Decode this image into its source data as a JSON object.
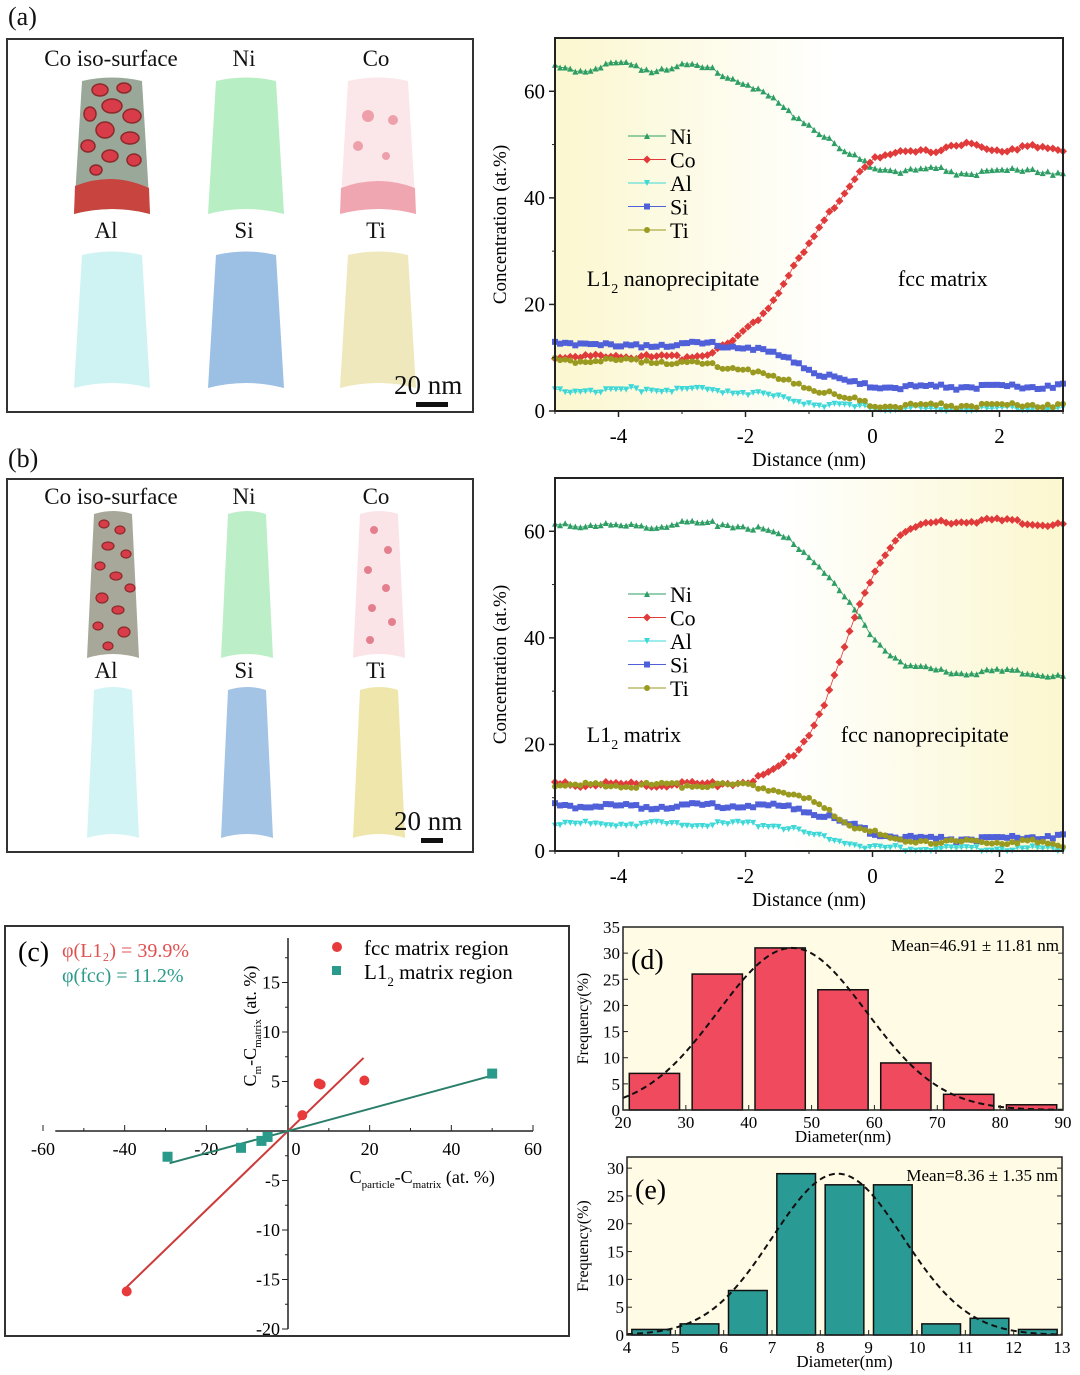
{
  "panels": {
    "a": {
      "tag": "(a)",
      "apt": {
        "labels": [
          "Co iso-surface",
          "Ni",
          "Co",
          "Al",
          "Si",
          "Ti"
        ],
        "scale_label": "20 nm"
      }
    },
    "b": {
      "tag": "(b)",
      "apt": {
        "labels": [
          "Co iso-surface",
          "Ni",
          "Co",
          "Al",
          "Si",
          "Ti"
        ],
        "scale_label": "20 nm"
      }
    },
    "c": {
      "tag": "(c)"
    },
    "d": {
      "tag": "(d)"
    },
    "e": {
      "tag": "(e)"
    }
  },
  "chart_data": [
    {
      "id": "a-profile",
      "type": "line",
      "title": "",
      "xlabel": "Distance (nm)",
      "ylabel": "Concentration (at.%)",
      "xlim": [
        -5,
        3
      ],
      "ylim": [
        0,
        70
      ],
      "xticks": [
        -4,
        -2,
        0,
        2
      ],
      "yticks": [
        0,
        20,
        40,
        60
      ],
      "legend": [
        "Ni",
        "Co",
        "Al",
        "Si",
        "Ti"
      ],
      "legend_position": "upper-left",
      "annotations": [
        {
          "text": "L1",
          "sub": "2",
          "rest": " nanoprecipitate",
          "x": -4.5,
          "y": 25
        },
        {
          "text": "fcc matrix",
          "sub": "",
          "rest": "",
          "x": 0.4,
          "y": 25
        }
      ],
      "background": "left-yellow-gradient",
      "series": [
        {
          "name": "Ni",
          "color": "#2e9e64",
          "marker": "triangle",
          "x": [
            -5,
            -4.5,
            -4,
            -3.5,
            -3,
            -2.5,
            -2,
            -1.75,
            -1.5,
            -1.25,
            -1,
            -0.75,
            -0.5,
            -0.25,
            0,
            0.5,
            1,
            1.5,
            2,
            2.5,
            3
          ],
          "y": [
            64.5,
            64,
            65.5,
            64,
            65,
            64,
            61.5,
            60,
            58,
            55.5,
            54,
            51.5,
            49,
            47.5,
            46,
            45,
            45.5,
            44.5,
            45,
            45.5,
            44.5
          ]
        },
        {
          "name": "Co",
          "color": "#e03a3a",
          "marker": "diamond",
          "x": [
            -5,
            -4.5,
            -4,
            -3.5,
            -3,
            -2.5,
            -2.2,
            -2,
            -1.75,
            -1.5,
            -1.25,
            -1,
            -0.75,
            -0.5,
            -0.25,
            0,
            0.5,
            1,
            1.5,
            2,
            2.5,
            3
          ],
          "y": [
            10,
            10,
            10.5,
            10,
            10,
            11,
            13,
            15,
            18,
            22,
            27,
            31,
            36,
            40,
            44.5,
            47,
            49,
            49,
            50,
            49,
            49.5,
            49
          ]
        },
        {
          "name": "Al",
          "color": "#3fd8d8",
          "marker": "triangle-down",
          "x": [
            -5,
            -4.5,
            -4,
            -3.5,
            -3,
            -2.5,
            -2,
            -1.5,
            -1,
            -0.5,
            0,
            0.5,
            1,
            1.5,
            2,
            2.5,
            3
          ],
          "y": [
            4,
            3.8,
            4,
            4,
            4,
            3.8,
            3.5,
            2.5,
            1.5,
            0.8,
            0.5,
            0.4,
            0.4,
            0.4,
            0.4,
            0.4,
            0.4
          ]
        },
        {
          "name": "Si",
          "color": "#5060d8",
          "marker": "square",
          "x": [
            -5,
            -4.5,
            -4,
            -3.5,
            -3,
            -2.5,
            -2,
            -1.75,
            -1.5,
            -1.25,
            -1,
            -0.75,
            -0.5,
            -0.25,
            0,
            0.5,
            1,
            1.5,
            2,
            2.5,
            3
          ],
          "y": [
            12.5,
            13,
            12,
            12.5,
            12.5,
            12.5,
            12,
            11.5,
            10.5,
            9.5,
            8,
            6.5,
            6,
            5,
            4.8,
            4.5,
            4.5,
            4.5,
            4.6,
            4.5,
            5
          ]
        },
        {
          "name": "Ti",
          "color": "#9a9a20",
          "marker": "circle",
          "x": [
            -5,
            -4.5,
            -4,
            -3.5,
            -3,
            -2.5,
            -2,
            -1.75,
            -1.5,
            -1.25,
            -1,
            -0.75,
            -0.5,
            -0.25,
            0,
            0.5,
            1,
            1.5,
            2,
            2.5,
            3
          ],
          "y": [
            9.5,
            9.5,
            9.5,
            9.5,
            9,
            8.5,
            8,
            7,
            6,
            5.5,
            4.5,
            3.5,
            2.5,
            2,
            1.2,
            1,
            1,
            1,
            1,
            1.2,
            1.2
          ]
        }
      ]
    },
    {
      "id": "b-profile",
      "type": "line",
      "title": "",
      "xlabel": "Distance (nm)",
      "ylabel": "Concentration (at.%)",
      "xlim": [
        -5,
        3
      ],
      "ylim": [
        0,
        70
      ],
      "xticks": [
        -4,
        -2,
        0,
        2
      ],
      "yticks": [
        0,
        20,
        40,
        60
      ],
      "legend": [
        "Ni",
        "Co",
        "Al",
        "Si",
        "Ti"
      ],
      "legend_position": "center-left",
      "annotations": [
        {
          "text": "L1",
          "sub": "2",
          "rest": " matrix",
          "x": -4.5,
          "y": 22
        },
        {
          "text": "fcc nanoprecipitate",
          "sub": "",
          "rest": "",
          "x": -0.5,
          "y": 22
        }
      ],
      "background": "right-yellow-gradient",
      "series": [
        {
          "name": "Ni",
          "color": "#2e9e64",
          "marker": "triangle",
          "x": [
            -5,
            -4.5,
            -4,
            -3.5,
            -3,
            -2.5,
            -2,
            -1.75,
            -1.5,
            -1.25,
            -1,
            -0.75,
            -0.5,
            -0.25,
            0,
            0.25,
            0.5,
            0.75,
            1,
            1.5,
            2,
            2.5,
            3
          ],
          "y": [
            61,
            61.3,
            61,
            61,
            61.5,
            61.5,
            61,
            60.5,
            59.5,
            58,
            55.5,
            52.5,
            48.5,
            44.5,
            40.5,
            37.5,
            35,
            34.5,
            33.8,
            33.5,
            33.8,
            33.5,
            32.5
          ]
        },
        {
          "name": "Co",
          "color": "#e03a3a",
          "marker": "diamond",
          "x": [
            -5,
            -4.5,
            -4,
            -3.5,
            -3,
            -2.5,
            -2,
            -1.75,
            -1.5,
            -1.25,
            -1,
            -0.75,
            -0.5,
            -0.25,
            0,
            0.25,
            0.5,
            0.75,
            1,
            1.5,
            2,
            2.5,
            3
          ],
          "y": [
            12.5,
            12.5,
            12.5,
            12.5,
            12.5,
            12.5,
            13,
            14,
            15.5,
            18,
            22,
            28,
            36,
            44.5,
            52,
            57,
            60,
            61,
            61.5,
            62,
            62,
            61.5,
            61
          ]
        },
        {
          "name": "Al",
          "color": "#3fd8d8",
          "marker": "triangle-down",
          "x": [
            -5,
            -4.5,
            -4,
            -3.5,
            -3,
            -2.5,
            -2,
            -1.5,
            -1.25,
            -1,
            -0.75,
            -0.5,
            -0.25,
            0,
            0.5,
            1,
            1.5,
            2,
            2.5,
            3
          ],
          "y": [
            5,
            5,
            5,
            5,
            5,
            5,
            5,
            4.8,
            4,
            3.2,
            2.5,
            1.8,
            1.2,
            0.6,
            0.4,
            0.4,
            0.4,
            0.4,
            0.4,
            0.3
          ]
        },
        {
          "name": "Si",
          "color": "#5060d8",
          "marker": "square",
          "x": [
            -5,
            -4.5,
            -4,
            -3.5,
            -3,
            -2.5,
            -2,
            -1.5,
            -1.25,
            -1,
            -0.75,
            -0.5,
            -0.25,
            0,
            0.25,
            0.5,
            1,
            1.5,
            2,
            2.5,
            3
          ],
          "y": [
            8.5,
            8.5,
            8.5,
            8.3,
            8.5,
            8.5,
            8.5,
            8.5,
            8.2,
            7.5,
            6.5,
            5.5,
            4.5,
            3.5,
            3,
            2.5,
            2.2,
            2.2,
            2.3,
            2.6,
            3
          ]
        },
        {
          "name": "Ti",
          "color": "#9a9a20",
          "marker": "circle",
          "x": [
            -5,
            -4.5,
            -4,
            -3.5,
            -3,
            -2.5,
            -2,
            -1.75,
            -1.5,
            -1.25,
            -1,
            -0.75,
            -0.5,
            -0.25,
            0,
            0.25,
            0.5,
            1,
            1.5,
            2,
            2.5,
            3
          ],
          "y": [
            12.3,
            12.3,
            12.3,
            12.3,
            12.3,
            12.3,
            12.3,
            12,
            11.5,
            10.5,
            9.5,
            8,
            6,
            4.5,
            3.5,
            2.5,
            2,
            1.8,
            1.7,
            1.7,
            1.7,
            1
          ]
        }
      ]
    },
    {
      "id": "c-scatter",
      "type": "scatter",
      "title": "",
      "xlabel": "C_particle - C_matrix (at. %)",
      "ylabel": "C_m - C_matrix (at. %)",
      "xlim": [
        -60,
        60
      ],
      "ylim": [
        -20,
        20
      ],
      "xticks": [
        -60,
        -40,
        -20,
        0,
        20,
        40,
        60
      ],
      "yticks": [
        -20,
        -15,
        -10,
        -5,
        5,
        10,
        15
      ],
      "legend_position": "top-right",
      "annotations": [
        {
          "text": "φ(L1₂) = 39.9%",
          "color": "#e05050"
        },
        {
          "text": "φ(fcc) = 11.2%",
          "color": "#2a9a8a"
        }
      ],
      "series": [
        {
          "name": "fcc  matrix region",
          "legend_sub": "",
          "color": "#e83a3a",
          "marker": "circle",
          "x": [
            -39.5,
            3.5,
            7.5,
            8,
            18.7
          ],
          "y": [
            -16.2,
            1.6,
            4.8,
            4.7,
            5.1
          ],
          "fit": {
            "x": [
              -39.5,
              18.5
            ],
            "slope": 0.399
          }
        },
        {
          "name": "L1",
          "legend_sub": "2",
          "legend_rest": " matrix region",
          "color": "#2a9a8a",
          "marker": "square",
          "x": [
            -29.5,
            -11.5,
            -6.5,
            -5,
            50
          ],
          "y": [
            -2.6,
            -1.7,
            -1.0,
            -0.6,
            5.8
          ],
          "fit": {
            "x": [
              -29,
              50
            ],
            "slope": 0.112
          }
        }
      ]
    },
    {
      "id": "d-hist",
      "type": "bar",
      "title": "",
      "annotation": "Mean=46.91 ± 11.81 nm",
      "xlabel": "Diameter(nm)",
      "ylabel": "Frequency(%)",
      "xlim": [
        20,
        90
      ],
      "ylim": [
        0,
        35
      ],
      "xticks": [
        20,
        30,
        40,
        50,
        60,
        70,
        80,
        90
      ],
      "yticks": [
        0,
        5,
        10,
        15,
        20,
        25,
        30,
        35
      ],
      "bin_edges": [
        20,
        30,
        40,
        50,
        60,
        70,
        80,
        90
      ],
      "values": [
        7,
        26,
        31,
        23,
        9,
        3,
        1
      ],
      "bar_color": "#f04a5e",
      "fit": {
        "type": "gaussian",
        "mean": 46.91,
        "sd": 11.81,
        "peak": 31
      },
      "background": "pale-yellow"
    },
    {
      "id": "e-hist",
      "type": "bar",
      "title": "",
      "annotation": "Mean=8.36 ± 1.35 nm",
      "xlabel": "Diameter(nm)",
      "ylabel": "Frequency(%)",
      "xlim": [
        4,
        13
      ],
      "ylim": [
        0,
        32
      ],
      "xticks": [
        4,
        5,
        6,
        7,
        8,
        9,
        10,
        11,
        12,
        13
      ],
      "yticks": [
        0,
        5,
        10,
        15,
        20,
        25,
        30
      ],
      "bin_edges": [
        4,
        5,
        6,
        7,
        8,
        9,
        10,
        11,
        12,
        13
      ],
      "values": [
        1,
        2,
        8,
        29,
        27,
        27,
        2,
        3,
        1
      ],
      "bar_color": "#2a9a94",
      "fit": {
        "type": "gaussian",
        "mean": 8.36,
        "sd": 1.35,
        "peak": 29
      },
      "background": "pale-yellow"
    }
  ]
}
